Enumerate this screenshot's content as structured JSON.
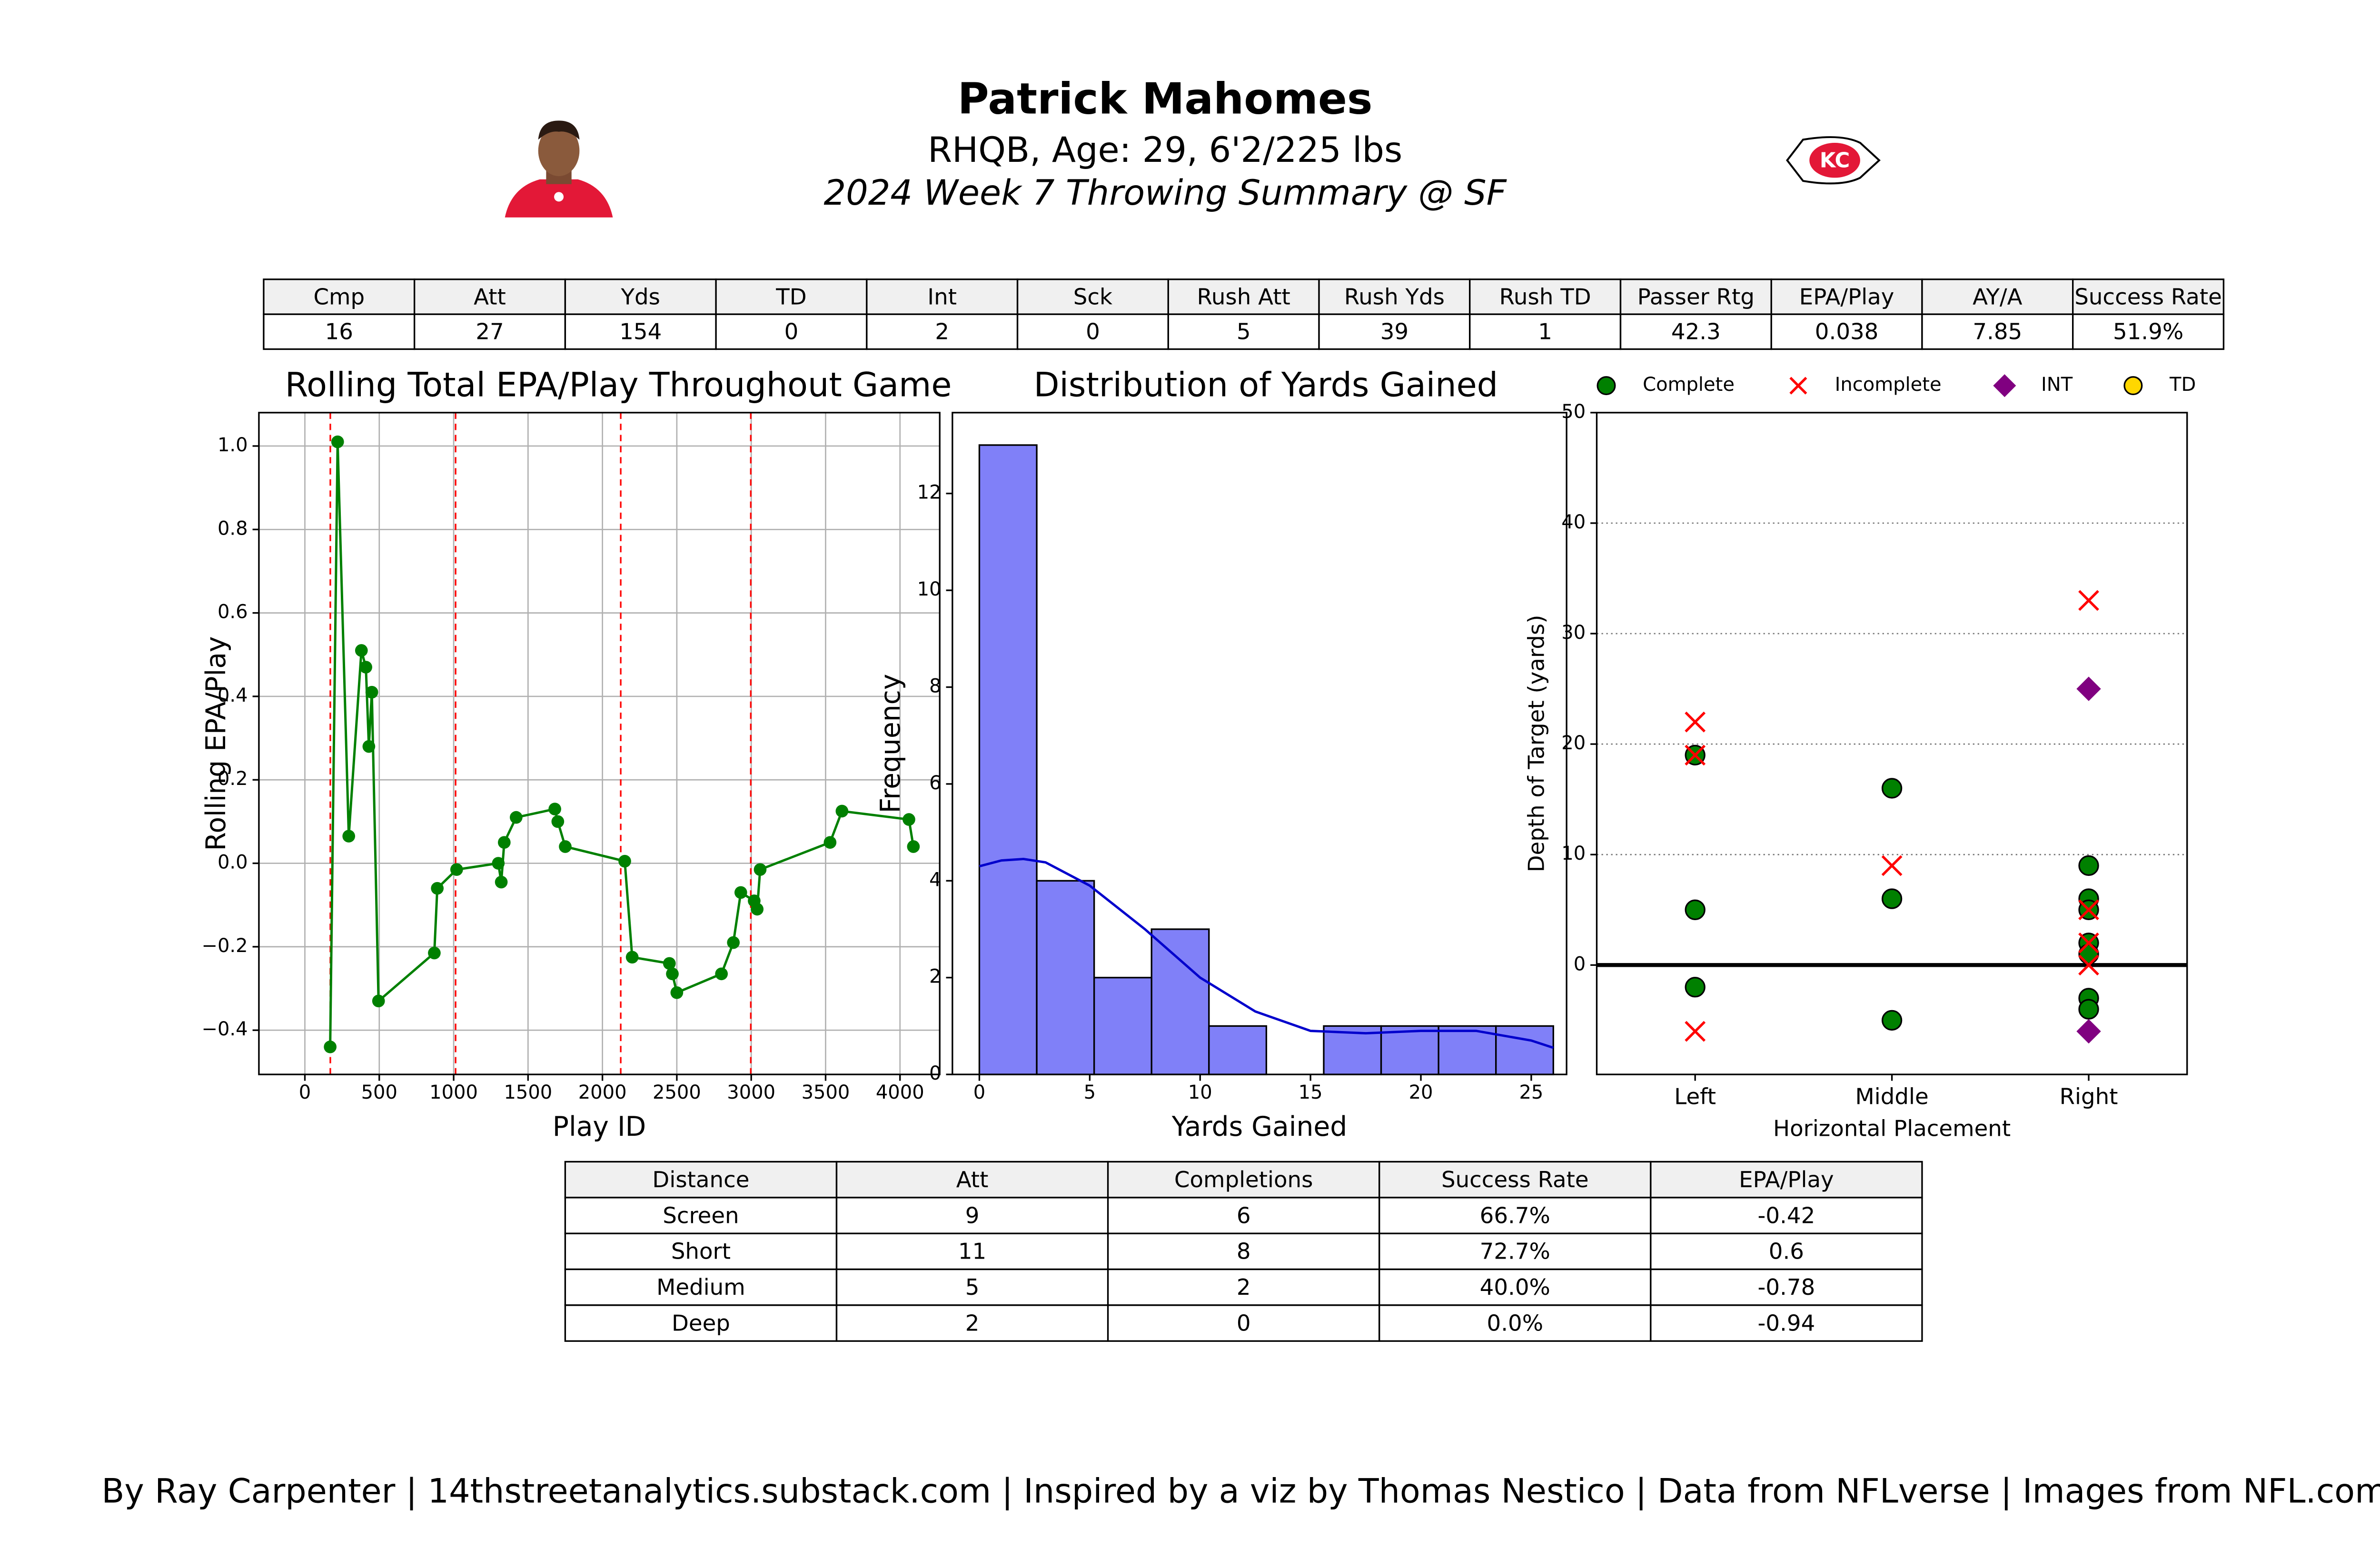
{
  "header": {
    "title": "Patrick Mahomes",
    "subtitle": "RHQB, Age: 29, 6'2/225 lbs",
    "game": "2024 Week 7 Throwing Summary @ SF"
  },
  "stats_table": {
    "columns": [
      "Cmp",
      "Att",
      "Yds",
      "TD",
      "Int",
      "Sck",
      "Rush Att",
      "Rush Yds",
      "Rush TD",
      "Passer Rtg",
      "EPA/Play",
      "AY/A",
      "Success Rate"
    ],
    "rows": [
      [
        16,
        27,
        154,
        0,
        2,
        0,
        5,
        39,
        1,
        42.3,
        0.038,
        7.85,
        "51.9%"
      ]
    ]
  },
  "chart_data": [
    {
      "type": "line",
      "title": "Rolling Total EPA/Play Throughout Game",
      "x_label": "Play ID",
      "y_label": "Rolling EPA/Play",
      "x": [
        170,
        220,
        295,
        380,
        410,
        430,
        450,
        495,
        870,
        890,
        1020,
        1300,
        1320,
        1340,
        1420,
        1680,
        1700,
        1750,
        2150,
        2200,
        2450,
        2470,
        2500,
        2800,
        2880,
        2930,
        3020,
        3040,
        3060,
        3530,
        3610,
        4060,
        4090
      ],
      "series": [
        {
          "color": "#008000",
          "values": [
            -0.44,
            1.01,
            0.065,
            0.51,
            0.47,
            0.28,
            0.41,
            -0.33,
            -0.215,
            -0.06,
            -0.015,
            0.0,
            -0.045,
            0.05,
            0.11,
            0.13,
            0.1,
            0.04,
            0.005,
            -0.225,
            -0.24,
            -0.265,
            -0.31,
            -0.265,
            -0.19,
            -0.07,
            -0.09,
            -0.11,
            -0.015,
            0.05,
            0.125,
            0.105,
            0.04
          ]
        }
      ],
      "vlines": [
        171,
        1013,
        2123,
        2997
      ],
      "vline_color": "#ff0000",
      "xlim": [
        -309,
        4267
      ],
      "ylim": [
        -0.506,
        1.08
      ],
      "xticks": [
        0,
        500,
        1000,
        1500,
        2000,
        2500,
        3000,
        3500,
        4000
      ],
      "yticks": [
        {
          "value": -0.4,
          "label": "−0.4"
        },
        {
          "value": -0.2,
          "label": "−0.2"
        },
        {
          "value": 0,
          "label": "0.0"
        },
        {
          "value": 0.2,
          "label": "0.2"
        },
        {
          "value": 0.4,
          "label": "0.4"
        },
        {
          "value": 0.6,
          "label": "0.6"
        },
        {
          "value": 0.8,
          "label": "0.8"
        },
        {
          "value": 1,
          "label": "1.0"
        }
      ],
      "grid": true
    },
    {
      "type": "histogram",
      "title": "Distribution of Yards Gained",
      "x_label": "Yards Gained",
      "y_label": "Frequency",
      "bins": [
        0,
        2.6,
        5.2,
        7.8,
        10.4,
        13,
        15.6,
        18.2,
        20.8,
        23.4,
        26
      ],
      "values": [
        13,
        4,
        2,
        3,
        1,
        0,
        1,
        1,
        1,
        1
      ],
      "color": "#8080f8",
      "edgecolor": "#000000",
      "kde": {
        "color": "#0000cc",
        "x": [
          0,
          1,
          2,
          3,
          5,
          7.5,
          10,
          12.5,
          15,
          17.5,
          20,
          22.5,
          25,
          26
        ],
        "values": [
          4.3,
          4.42,
          4.45,
          4.38,
          3.9,
          3.0,
          2.0,
          1.3,
          0.9,
          0.85,
          0.9,
          0.9,
          0.7,
          0.55
        ]
      },
      "xlim": [
        -1.22,
        26.6
      ],
      "ylim": [
        0,
        13.67
      ],
      "xticks": [
        0,
        5,
        10,
        15,
        20,
        25
      ],
      "yticks": [
        0,
        2,
        4,
        6,
        8,
        10,
        12
      ],
      "grid": false
    },
    {
      "type": "scatter",
      "x_label": "Horizontal Placement",
      "y_label": "Depth of Target (yards)",
      "legend": "top",
      "series": [
        {
          "name": "Complete",
          "color": "#008000",
          "marker": "circle",
          "x": [
            0,
            0,
            0,
            1,
            1,
            1,
            2,
            2,
            2,
            2,
            2,
            2,
            2
          ],
          "values": [
            19,
            5,
            -2,
            16,
            6,
            -5,
            9,
            6,
            5,
            2,
            1,
            -3,
            -4
          ]
        },
        {
          "name": "Incomplete",
          "color": "#ff0000",
          "marker": "x",
          "x": [
            0,
            0,
            0,
            1,
            2,
            2,
            2,
            2
          ],
          "values": [
            22,
            19,
            -6,
            9,
            33,
            5,
            2,
            0
          ]
        },
        {
          "name": "INT",
          "color": "#800080",
          "marker": "diamond",
          "x": [
            2,
            2
          ],
          "values": [
            25,
            -6
          ]
        },
        {
          "name": "TD",
          "color": "#ffd700",
          "marker": "circle",
          "x": [],
          "values": []
        }
      ],
      "xlim": [
        -0.5,
        2.5
      ],
      "ylim": [
        -9.9,
        50
      ],
      "xticks": [
        {
          "value": 0,
          "label": "Left"
        },
        {
          "value": 1,
          "label": "Middle"
        },
        {
          "value": 2,
          "label": "Right"
        }
      ],
      "yticks": [
        0,
        10,
        20,
        30,
        40,
        50
      ],
      "grid": "y",
      "grid_style": "dotted",
      "zero_line": true
    }
  ],
  "distance_table": {
    "columns": [
      "Distance",
      "Att",
      "Completions",
      "Success Rate",
      "EPA/Play"
    ],
    "rows": [
      [
        "Screen",
        9,
        6,
        "66.7%",
        -0.42
      ],
      [
        "Short",
        11,
        8,
        "72.7%",
        0.6
      ],
      [
        "Medium",
        5,
        2,
        "40.0%",
        -0.78
      ],
      [
        "Deep",
        2,
        0,
        "0.0%",
        -0.94
      ]
    ]
  },
  "footer": "By Ray Carpenter | 14thstreetanalytics.substack.com | Inspired by a viz by Thomas Nestico | Data from NFLverse | Images from NFL.com"
}
